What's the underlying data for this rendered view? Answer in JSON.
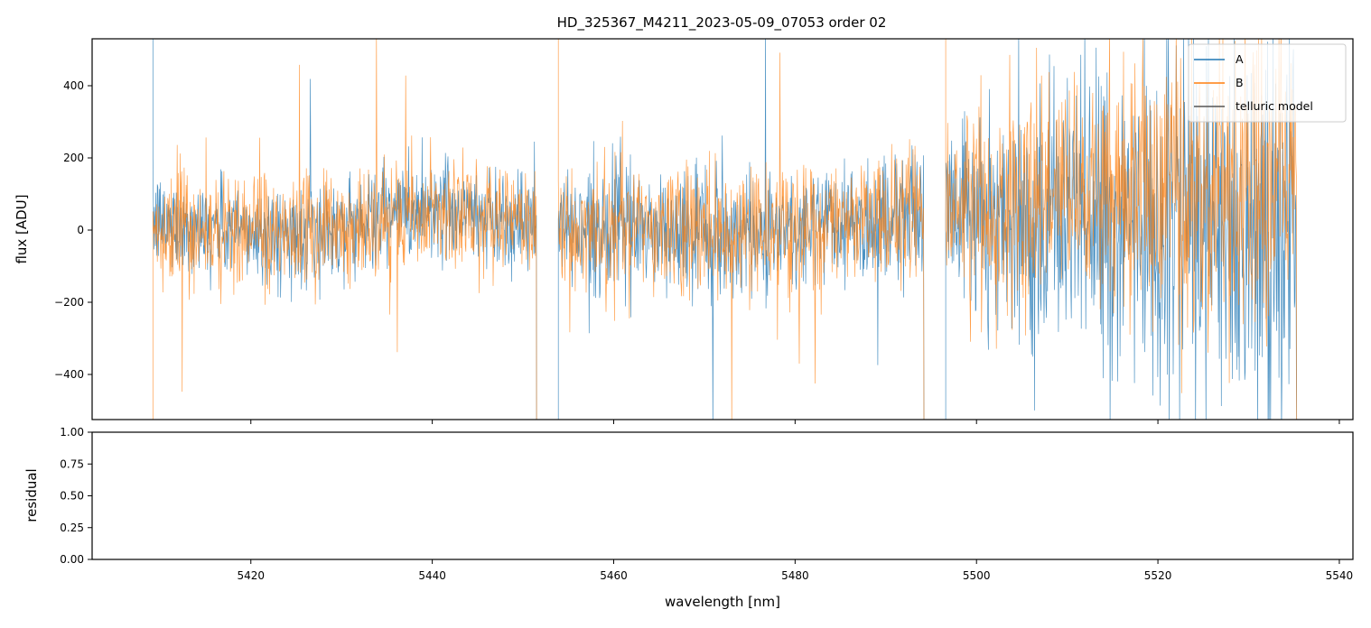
{
  "chart_data": [
    {
      "type": "line",
      "title": "HD_325367_M4211_2023-05-09_07053  order 02",
      "xlabel": "",
      "ylabel": "flux [ADU]",
      "xlim": [
        5402.5,
        5541.5
      ],
      "ylim": [
        -525,
        530
      ],
      "x_ticks": [
        5420,
        5440,
        5460,
        5480,
        5500,
        5520,
        5540
      ],
      "y_ticks": [
        -400,
        -200,
        0,
        200,
        400
      ],
      "y_tick_labels": [
        "−400",
        "−200",
        "0",
        "200",
        "400"
      ],
      "grid": false,
      "legend_position": "top-right",
      "series": [
        {
          "name": "A",
          "color": "#1f77b4",
          "x_range": [
            5409.2,
            5535.3
          ],
          "segments": [
            [
              5409.2,
              5451.5
            ],
            [
              5453.9,
              5494.2
            ],
            [
              5496.6,
              5535.3
            ]
          ],
          "noise_envelope": [
            {
              "x": 5410,
              "sigma": 65,
              "mean": 20
            },
            {
              "x": 5425,
              "sigma": 70,
              "mean": -20
            },
            {
              "x": 5440,
              "sigma": 70,
              "mean": 70
            },
            {
              "x": 5450,
              "sigma": 70,
              "mean": 20
            },
            {
              "x": 5460,
              "sigma": 80,
              "mean": 10
            },
            {
              "x": 5470,
              "sigma": 90,
              "mean": -20
            },
            {
              "x": 5485,
              "sigma": 85,
              "mean": 20
            },
            {
              "x": 5494,
              "sigma": 90,
              "mean": 60
            },
            {
              "x": 5497,
              "sigma": 110,
              "mean": 60
            },
            {
              "x": 5505,
              "sigma": 160,
              "mean": 40
            },
            {
              "x": 5515,
              "sigma": 210,
              "mean": 20
            },
            {
              "x": 5525,
              "sigma": 260,
              "mean": 0
            },
            {
              "x": 5535,
              "sigma": 300,
              "mean": 0
            }
          ]
        },
        {
          "name": "B",
          "color": "#ff7f0e",
          "x_range": [
            5409.2,
            5535.3
          ],
          "segments": [
            [
              5409.2,
              5451.5
            ],
            [
              5453.9,
              5494.2
            ],
            [
              5496.6,
              5535.3
            ]
          ],
          "noise_envelope": [
            {
              "x": 5410,
              "sigma": 85,
              "mean": 0
            },
            {
              "x": 5425,
              "sigma": 85,
              "mean": -10
            },
            {
              "x": 5440,
              "sigma": 80,
              "mean": 60
            },
            {
              "x": 5450,
              "sigma": 80,
              "mean": 20
            },
            {
              "x": 5460,
              "sigma": 90,
              "mean": 0
            },
            {
              "x": 5470,
              "sigma": 95,
              "mean": -10
            },
            {
              "x": 5485,
              "sigma": 90,
              "mean": 20
            },
            {
              "x": 5494,
              "sigma": 95,
              "mean": 50
            },
            {
              "x": 5497,
              "sigma": 110,
              "mean": 70
            },
            {
              "x": 5505,
              "sigma": 140,
              "mean": 90
            },
            {
              "x": 5515,
              "sigma": 170,
              "mean": 110
            },
            {
              "x": 5525,
              "sigma": 210,
              "mean": 120
            },
            {
              "x": 5535,
              "sigma": 240,
              "mean": 120
            }
          ]
        },
        {
          "name": "telluric model",
          "color": "#555555",
          "values": []
        }
      ]
    },
    {
      "type": "line",
      "title": "",
      "xlabel": "wavelength [nm]",
      "ylabel": "residual",
      "xlim": [
        5402.5,
        5541.5
      ],
      "ylim": [
        0,
        1
      ],
      "x_ticks": [
        5420,
        5440,
        5460,
        5480,
        5500,
        5520,
        5540
      ],
      "y_ticks": [
        0,
        0.25,
        0.5,
        0.75,
        1.0
      ],
      "y_tick_labels": [
        "0.00",
        "0.25",
        "0.50",
        "0.75",
        "1.00"
      ],
      "grid": false,
      "series": []
    }
  ]
}
